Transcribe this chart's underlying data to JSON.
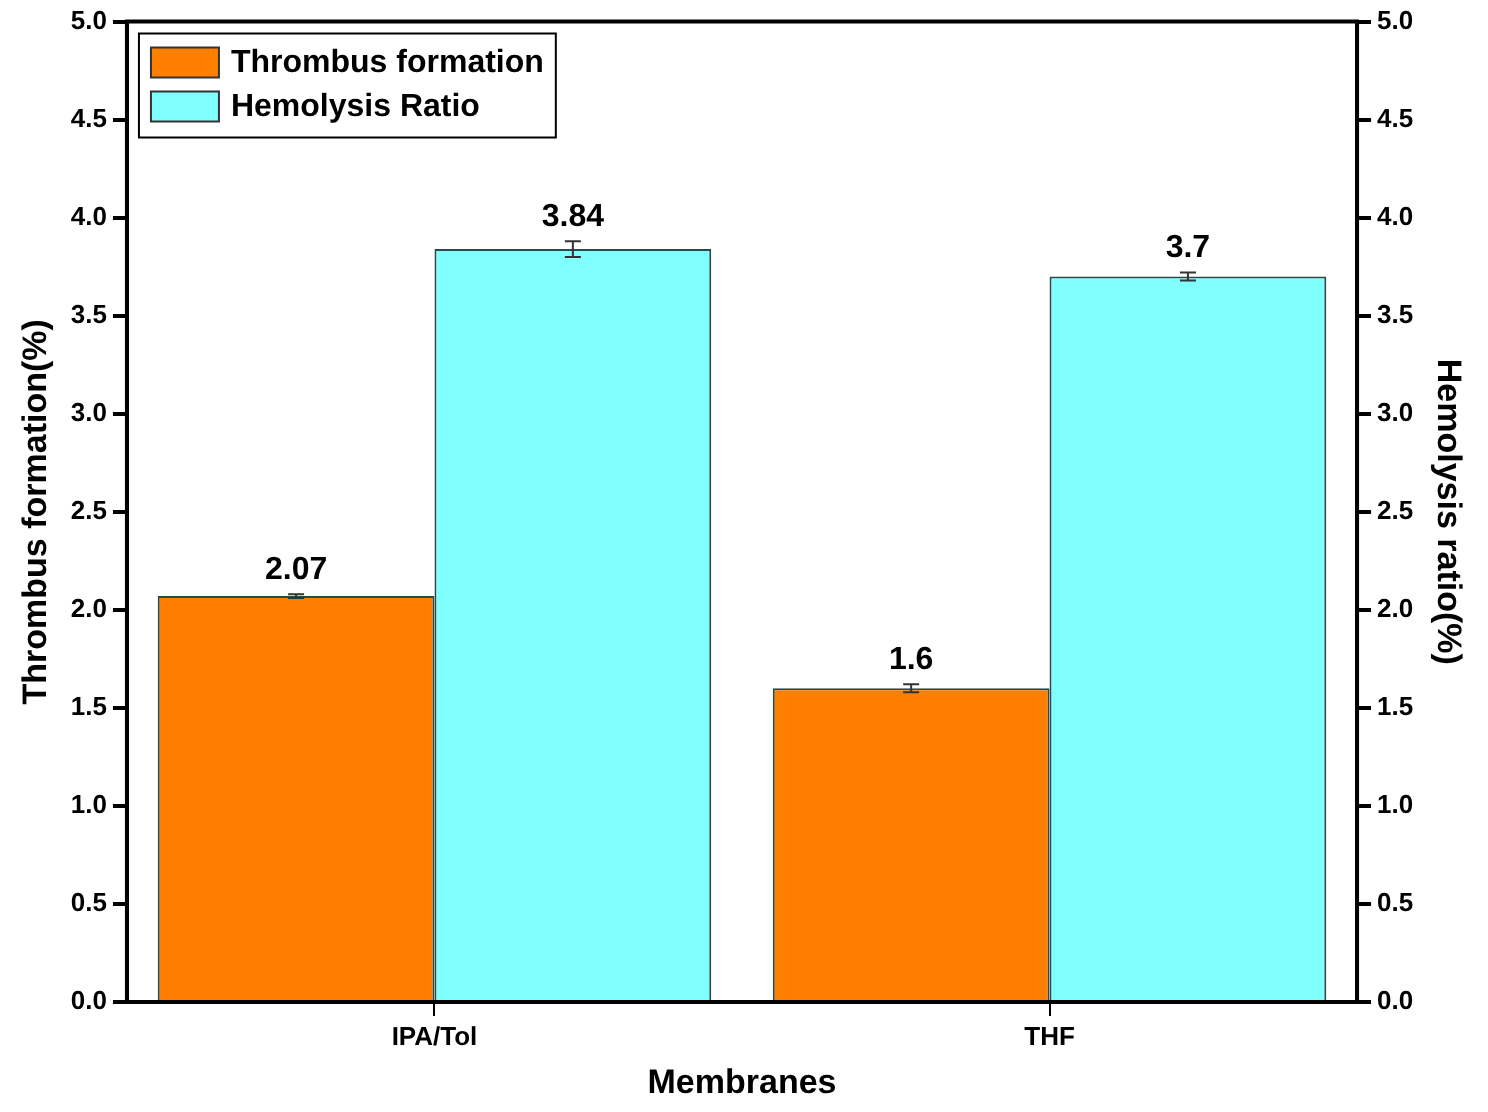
{
  "chart_data": {
    "type": "bar",
    "xlabel": "Membranes",
    "ylabel": "Thrombus formation(%)",
    "y2label": "Hemolysis ratio(%)",
    "categories": [
      "IPA/Tol",
      "THF"
    ],
    "series": [
      {
        "name": "Thrombus formation",
        "color": "#ff8000",
        "values": [
          2.07,
          1.6
        ],
        "errors": [
          0.01,
          0.02
        ]
      },
      {
        "name": "Hemolysis Ratio",
        "color": "#80ffff",
        "values": [
          3.84,
          3.7
        ],
        "errors": [
          0.04,
          0.02
        ],
        "axis": "y2"
      }
    ],
    "ylim": [
      0,
      5
    ],
    "yticks": [
      {
        "value": 0,
        "label": "0.0"
      },
      {
        "value": 0.5,
        "label": "0.5"
      },
      {
        "value": 1,
        "label": "1.0"
      },
      {
        "value": 1.5,
        "label": "1.5"
      },
      {
        "value": 2,
        "label": "2.0"
      },
      {
        "value": 2.5,
        "label": "2.5"
      },
      {
        "value": 3,
        "label": "3.0"
      },
      {
        "value": 3.5,
        "label": "3.5"
      },
      {
        "value": 4,
        "label": "4.0"
      },
      {
        "value": 4.5,
        "label": "4.5"
      },
      {
        "value": 5,
        "label": "5.0"
      }
    ],
    "y2lim": [
      0,
      5
    ],
    "y2ticks": [
      {
        "value": 0,
        "label": "0.0"
      },
      {
        "value": 0.5,
        "label": "0.5"
      },
      {
        "value": 1,
        "label": "1.0"
      },
      {
        "value": 1.5,
        "label": "1.5"
      },
      {
        "value": 2,
        "label": "2.0"
      },
      {
        "value": 2.5,
        "label": "2.5"
      },
      {
        "value": 3,
        "label": "3.0"
      },
      {
        "value": 3.5,
        "label": "3.5"
      },
      {
        "value": 4,
        "label": "4.0"
      },
      {
        "value": 4.5,
        "label": "4.5"
      },
      {
        "value": 5,
        "label": "5.0"
      }
    ],
    "data_labels": true,
    "grid": false,
    "legend": "top left"
  }
}
